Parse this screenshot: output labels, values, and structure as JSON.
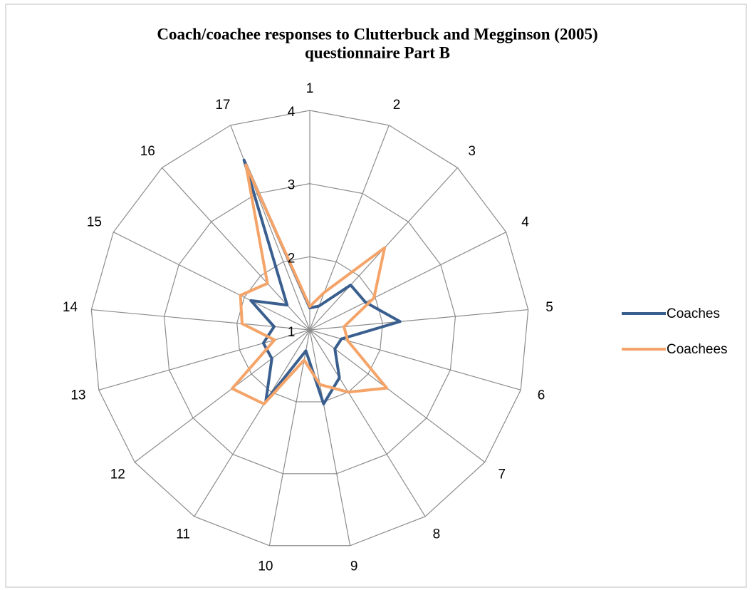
{
  "chart_data": {
    "type": "radar",
    "title": [
      "Coach/coachee responses to Clutterbuck and Megginson (2005)",
      "questionnaire Part B"
    ],
    "categories": [
      "1",
      "2",
      "3",
      "4",
      "5",
      "6",
      "7",
      "8",
      "9",
      "10",
      "11",
      "12",
      "13",
      "14",
      "15",
      "16",
      "17"
    ],
    "ylim": [
      1,
      4
    ],
    "yticks": [
      1,
      2,
      3,
      4
    ],
    "grid": true,
    "legend": "right",
    "series": [
      {
        "name": "Coaches",
        "color": "#3a5f8f",
        "values": [
          1.3,
          1.35,
          1.83,
          1.85,
          2.24,
          1.45,
          1.43,
          1.77,
          2.03,
          1.29,
          2.14,
          1.65,
          1.66,
          1.49,
          1.9,
          1.46,
          3.49
        ]
      },
      {
        "name": "Coachees",
        "color": "#f4a469",
        "values": [
          1.32,
          1.55,
          2.52,
          1.98,
          1.47,
          1.54,
          2.32,
          2.0,
          1.76,
          1.42,
          2.19,
          2.33,
          1.5,
          1.93,
          2.06,
          1.86,
          3.42
        ]
      }
    ]
  }
}
